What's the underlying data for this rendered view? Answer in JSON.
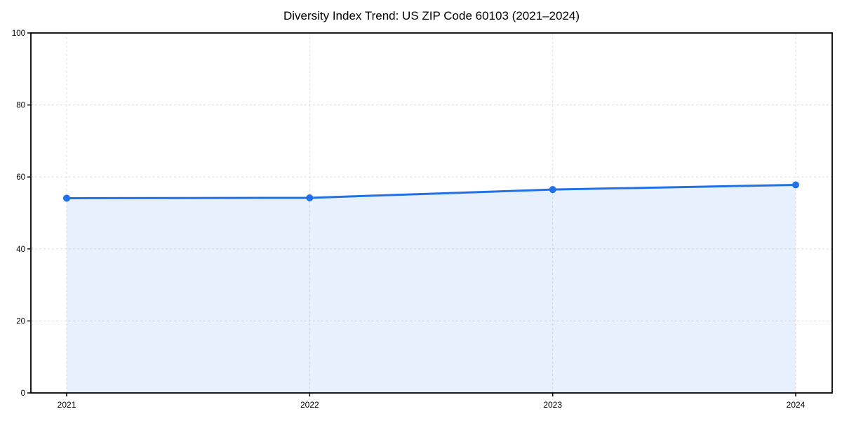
{
  "chart_data": {
    "type": "area",
    "title": "Diversity Index Trend: US ZIP Code 60103 (2021–2024)",
    "x": [
      "2021",
      "2022",
      "2023",
      "2024"
    ],
    "series": [
      {
        "name": "Diversity Index",
        "values": [
          54.1,
          54.2,
          56.5,
          57.8
        ]
      }
    ],
    "xlabel": "",
    "ylabel": "",
    "ylim": [
      0,
      100
    ],
    "yticks": [
      0,
      20,
      40,
      60,
      80,
      100
    ],
    "grid": true,
    "grid_style": "dashed",
    "legend": "none",
    "colors": {
      "line": "#2070e8",
      "marker": "#2070e8",
      "fill": "rgba(32,112,232,0.10)",
      "grid": "#dedede",
      "axis": "#000000",
      "tick_text": "#000000",
      "background": "#ffffff"
    }
  }
}
